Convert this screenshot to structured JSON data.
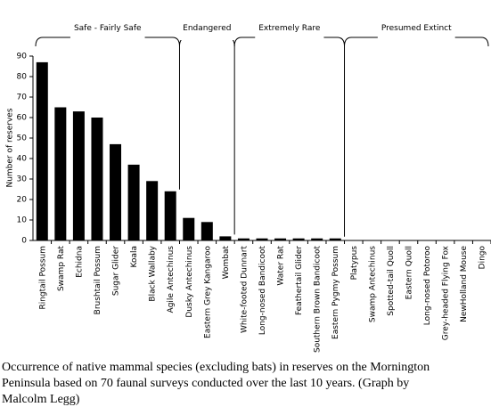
{
  "chart_data": {
    "type": "bar",
    "ylabel": "Number of reserves",
    "categories": [
      "Ringtail Possum",
      "Swamp Rat",
      "Echidna",
      "Brushtail Possum",
      "Sugar Glider",
      "Koala",
      "Black Wallaby",
      "Agile Antechinus",
      "Dusky Antechinus",
      "Eastern Grey Kangaroo",
      "Wombat",
      "White-footed Dunnart",
      "Long-nosed Bandicoot",
      "Water Rat",
      "Feathertail Glider",
      "Southern Brown Bandicoot",
      "Eastern Pygmy Possum",
      "Platypus",
      "Swamp Antechinus",
      "Spotted-tail Quoll",
      "Eastern Quoll",
      "Long-nosed Potoroo",
      "Grey-headed Flying Fox",
      "NewHolland Mouse",
      "Dingo"
    ],
    "values": [
      87,
      65,
      63,
      60,
      47,
      37,
      29,
      24,
      11,
      9,
      2,
      1,
      1,
      1,
      1,
      1,
      1,
      0,
      0,
      0,
      0,
      0,
      0,
      0,
      0
    ],
    "color": "#000000",
    "ylim": [
      0,
      90
    ],
    "yticks": [
      0,
      10,
      20,
      30,
      40,
      50,
      60,
      70,
      80,
      90
    ],
    "groups": [
      "Safe - Fairly Safe",
      "Endangered",
      "Extremely Rare",
      "Presumed Extinct"
    ],
    "caption": [
      "Occurrence of native mammal species (excluding bats) in reserves on the Mornington",
      "Peninsula based on 70 faunal surveys conducted over the last 10 years. (Graph by",
      "Malcolm Legg)"
    ]
  }
}
